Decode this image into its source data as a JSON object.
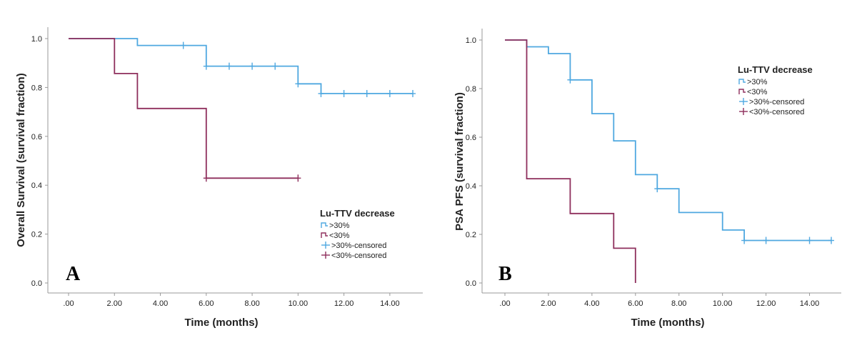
{
  "chart_data": [
    {
      "type": "line",
      "step": true,
      "panel_label": "A",
      "xlabel": "Time (months)",
      "ylabel": "Overall Survival (survival fraction)",
      "xlim": [
        0,
        15
      ],
      "ylim": [
        0,
        1.0
      ],
      "xticks": [
        ".00",
        "2.00",
        "4.00",
        "6.00",
        "8.00",
        "10.00",
        "12.00",
        "14.00"
      ],
      "yticks": [
        "0.0",
        "0.2",
        "0.4",
        "0.6",
        "0.8",
        "1.0"
      ],
      "legend": {
        "title": "Lu-TTV decrease",
        "position": "bottom-right",
        "items": [
          ">30%",
          "<30%",
          ">30%-censored",
          "<30%-censored"
        ]
      },
      "series": [
        {
          "name": ">30%",
          "color": "#4fa8e0",
          "x": [
            0,
            3,
            3,
            6,
            6,
            10,
            10,
            11,
            11,
            15
          ],
          "y": [
            1.0,
            1.0,
            0.972,
            0.972,
            0.887,
            0.887,
            0.815,
            0.815,
            0.775,
            0.775
          ],
          "censored": [
            {
              "x": 5,
              "y": 0.972
            },
            {
              "x": 6,
              "y": 0.887
            },
            {
              "x": 7,
              "y": 0.887
            },
            {
              "x": 8,
              "y": 0.887
            },
            {
              "x": 9,
              "y": 0.887
            },
            {
              "x": 10,
              "y": 0.815
            },
            {
              "x": 11,
              "y": 0.775
            },
            {
              "x": 12,
              "y": 0.775
            },
            {
              "x": 13,
              "y": 0.775
            },
            {
              "x": 14,
              "y": 0.775
            },
            {
              "x": 15,
              "y": 0.775
            }
          ]
        },
        {
          "name": "<30%",
          "color": "#8e2f5c",
          "x": [
            0,
            2,
            2,
            3,
            3,
            6,
            6,
            10
          ],
          "y": [
            1.0,
            1.0,
            0.857,
            0.857,
            0.714,
            0.714,
            0.429,
            0.429
          ],
          "censored": [
            {
              "x": 6,
              "y": 0.429
            },
            {
              "x": 10,
              "y": 0.429
            }
          ]
        }
      ]
    },
    {
      "type": "line",
      "step": true,
      "panel_label": "B",
      "xlabel": "Time (months)",
      "ylabel": "PSA PFS (survival fraction)",
      "xlim": [
        0,
        15
      ],
      "ylim": [
        0,
        1.0
      ],
      "xticks": [
        ".00",
        "2.00",
        "4.00",
        "6.00",
        "8.00",
        "10.00",
        "12.00",
        "14.00"
      ],
      "yticks": [
        "0.0",
        "0.2",
        "0.4",
        "0.6",
        "0.8",
        "1.0"
      ],
      "legend": {
        "title": "Lu-TTV decrease",
        "position": "top-right",
        "items": [
          ">30%",
          "<30%",
          ">30%-censored",
          "<30%-censored"
        ]
      },
      "series": [
        {
          "name": ">30%",
          "color": "#4fa8e0",
          "x": [
            0,
            1,
            1,
            2,
            2,
            3,
            3,
            4,
            4,
            5,
            5,
            6,
            6,
            7,
            7,
            8,
            8,
            10,
            10,
            11,
            11,
            15
          ],
          "y": [
            1.0,
            1.0,
            0.972,
            0.972,
            0.944,
            0.944,
            0.836,
            0.836,
            0.697,
            0.697,
            0.585,
            0.585,
            0.446,
            0.446,
            0.388,
            0.388,
            0.29,
            0.29,
            0.218,
            0.218,
            0.175,
            0.175
          ],
          "censored": [
            {
              "x": 3,
              "y": 0.836
            },
            {
              "x": 7,
              "y": 0.388
            },
            {
              "x": 11,
              "y": 0.175
            },
            {
              "x": 12,
              "y": 0.175
            },
            {
              "x": 14,
              "y": 0.175
            },
            {
              "x": 15,
              "y": 0.175
            }
          ]
        },
        {
          "name": "<30%",
          "color": "#8e2f5c",
          "x": [
            0,
            1,
            1,
            3,
            3,
            5,
            5,
            6,
            6
          ],
          "y": [
            1.0,
            1.0,
            0.429,
            0.429,
            0.286,
            0.286,
            0.143,
            0.143,
            0.0
          ],
          "censored": []
        }
      ]
    }
  ]
}
